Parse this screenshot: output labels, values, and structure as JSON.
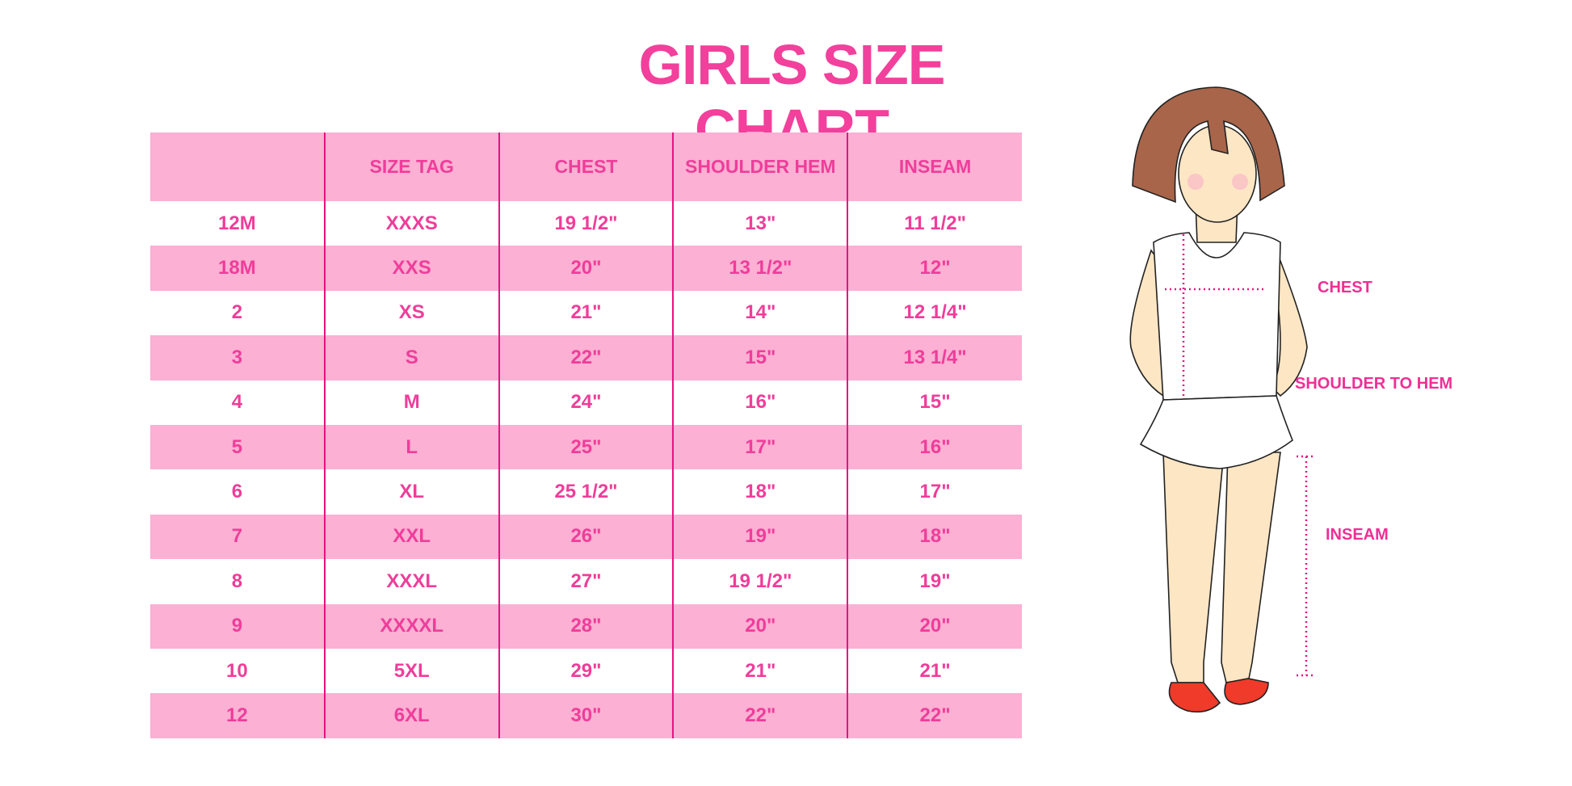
{
  "title": "GIRLS SIZE CHART",
  "table": {
    "headers": [
      "",
      "SIZE TAG",
      "CHEST",
      "SHOULDER HEM",
      "INSEAM"
    ],
    "rows": [
      [
        "12M",
        "XXXS",
        "19 1/2\"",
        "13\"",
        "11 1/2\""
      ],
      [
        "18M",
        "XXS",
        "20\"",
        "13 1/2\"",
        "12\""
      ],
      [
        "2",
        "XS",
        "21\"",
        "14\"",
        "12 1/4\""
      ],
      [
        "3",
        "S",
        "22\"",
        "15\"",
        "13 1/4\""
      ],
      [
        "4",
        "M",
        "24\"",
        "16\"",
        "15\""
      ],
      [
        "5",
        "L",
        "25\"",
        "17\"",
        "16\""
      ],
      [
        "6",
        "XL",
        "25 1/2\"",
        "18\"",
        "17\""
      ],
      [
        "7",
        "XXL",
        "26\"",
        "19\"",
        "18\""
      ],
      [
        "8",
        "XXXL",
        "27\"",
        "19 1/2\"",
        "19\""
      ],
      [
        "9",
        "XXXXL",
        "28\"",
        "20\"",
        "20\""
      ],
      [
        "10",
        "5XL",
        "29\"",
        "21\"",
        "21\""
      ],
      [
        "12",
        "6XL",
        "30\"",
        "22\"",
        "22\""
      ]
    ]
  },
  "figure": {
    "labels": {
      "chest": "CHEST",
      "shoulder": "SHOULDER TO HEM",
      "inseam": "INSEAM"
    }
  },
  "colors": {
    "accent": "#ef3d9a",
    "row_band": "#fbb0d4",
    "divider": "#e8127f"
  }
}
